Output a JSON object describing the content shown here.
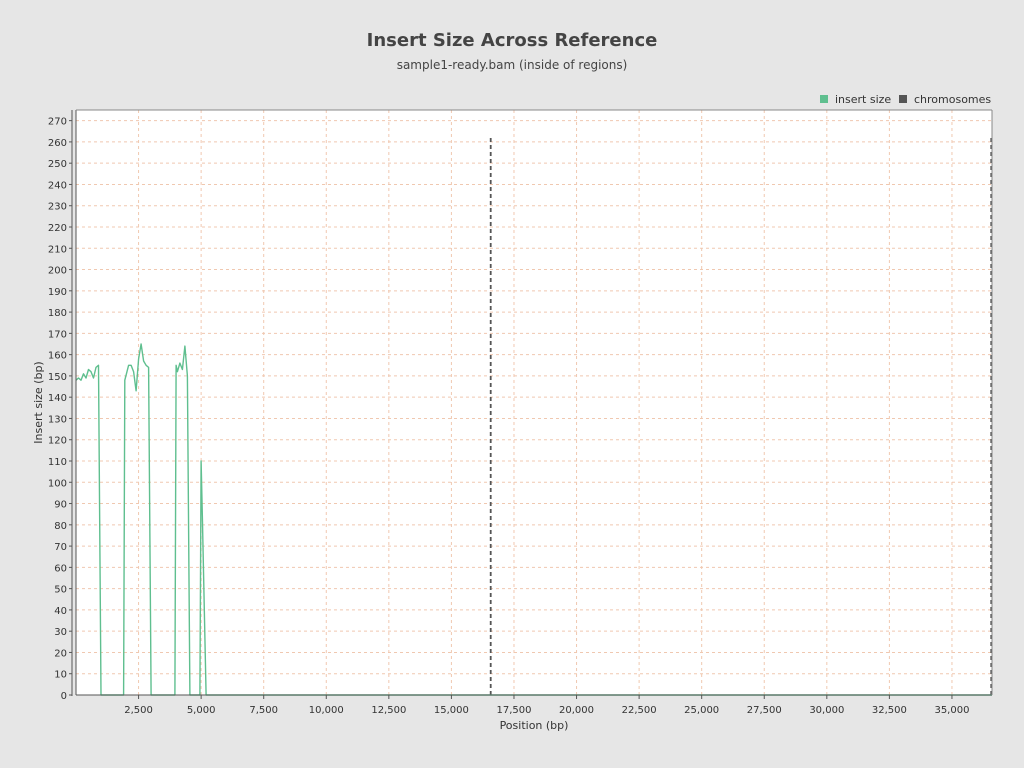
{
  "chart_data": {
    "type": "line",
    "title": "Insert Size Across Reference",
    "subtitle": "sample1-ready.bam (inside of regions)",
    "xlabel": "Position (bp)",
    "ylabel": "Insert size (bp)",
    "xlim": [
      0,
      36600
    ],
    "ylim": [
      0,
      275
    ],
    "x_ticks": [
      2500,
      5000,
      7500,
      10000,
      12500,
      15000,
      17500,
      20000,
      22500,
      25000,
      27500,
      30000,
      32500,
      35000
    ],
    "x_tick_labels": [
      "2,500",
      "5,000",
      "7,500",
      "10,000",
      "12,500",
      "15,000",
      "17,500",
      "20,000",
      "22,500",
      "25,000",
      "27,500",
      "30,000",
      "32,500",
      "35,000"
    ],
    "y_ticks": [
      0,
      10,
      20,
      30,
      40,
      50,
      60,
      70,
      80,
      90,
      100,
      110,
      120,
      130,
      140,
      150,
      160,
      170,
      180,
      190,
      200,
      210,
      220,
      230,
      240,
      250,
      260,
      270
    ],
    "grid": true,
    "legend_position": "top-right",
    "colors": {
      "insert_size": "#5fbf8f",
      "chromosomes": "#555555",
      "grid": "#f0c8b0",
      "plot_bg": "#ffffff"
    },
    "series": [
      {
        "name": "insert size",
        "x": [
          0,
          100,
          200,
          300,
          400,
          500,
          600,
          700,
          800,
          900,
          1000,
          1050,
          1100,
          1900,
          1950,
          2100,
          2200,
          2300,
          2400,
          2500,
          2600,
          2700,
          2800,
          2900,
          3000,
          3050,
          3100,
          3950,
          4000,
          4050,
          4150,
          4250,
          4350,
          4450,
          4550,
          4600,
          4950,
          5000,
          5050,
          5200,
          36600
        ],
        "y": [
          148,
          149,
          148,
          151,
          149,
          153,
          152,
          149,
          154,
          155,
          0,
          0,
          0,
          0,
          148,
          155,
          155,
          152,
          143,
          158,
          165,
          157,
          155,
          154,
          0,
          0,
          0,
          0,
          155,
          152,
          156,
          153,
          164,
          150,
          0,
          0,
          0,
          110,
          83,
          0,
          0
        ]
      },
      {
        "name": "chromosomes",
        "boundaries": [
          16570,
          36570
        ]
      }
    ]
  }
}
